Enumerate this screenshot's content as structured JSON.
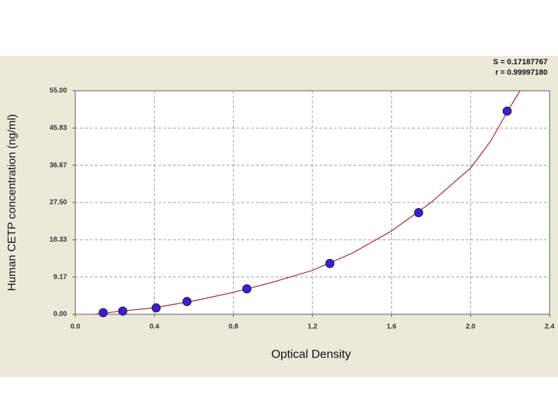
{
  "chart_data": {
    "type": "scatter",
    "xlabel": "Optical Density",
    "ylabel": "Human CETP concentration (ng/ml)",
    "annotations": [
      "S = 0.17187767",
      "r = 0.99997180"
    ],
    "x": [
      0.141,
      0.24,
      0.409,
      0.565,
      0.868,
      1.288,
      1.737,
      2.185
    ],
    "values": [
      0.39,
      0.78,
      1.56,
      3.13,
      6.25,
      12.5,
      25,
      50
    ],
    "color": "#3a22c8",
    "curve": {
      "color": "#b02a2a",
      "x": [
        0.1,
        0.2,
        0.4,
        0.6,
        0.8,
        1.0,
        1.2,
        1.4,
        1.6,
        1.8,
        2.0,
        2.1,
        2.2,
        2.25
      ],
      "y": [
        0,
        0.6,
        1.6,
        3.3,
        5.4,
        7.9,
        10.8,
        15.0,
        20.5,
        27.5,
        36,
        42.5,
        51,
        55
      ]
    },
    "xlim": [
      0,
      2.4
    ],
    "xticks": [
      {
        "value": 0,
        "label": "0.0"
      },
      0.4,
      0.8,
      1.2,
      1.6,
      {
        "value": 2,
        "label": "2.0"
      },
      2.4
    ],
    "ylim": [
      0,
      55
    ],
    "yticks": [
      {
        "value": 0,
        "label": "0.00"
      },
      9.17,
      18.33,
      {
        "value": 27.5,
        "label": "27.50"
      },
      36.67,
      45.83,
      {
        "value": 55,
        "label": "55.00"
      }
    ],
    "grid": true
  }
}
